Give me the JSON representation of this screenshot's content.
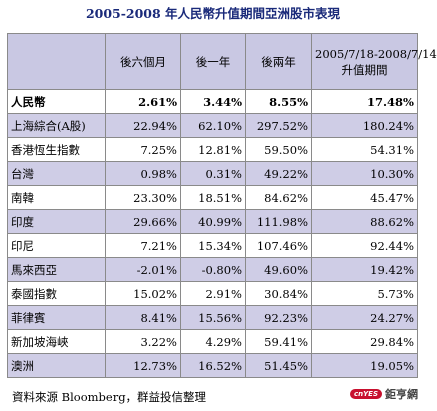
{
  "title": "2005-2008 年人民幣升值期間亞洲股市表現",
  "headers": [
    "",
    "後六個月",
    "後一年",
    "後兩年",
    "2005/7/18-2008/7/14",
    "升值期間"
  ],
  "rows": [
    {
      "name": "人民幣",
      "v": [
        "2.61%",
        "3.44%",
        "8.55%",
        "17.48%"
      ]
    },
    {
      "name": "上海綜合(A股)",
      "v": [
        "22.94%",
        "62.10%",
        "297.52%",
        "180.24%"
      ]
    },
    {
      "name": "香港恆生指數",
      "v": [
        "7.25%",
        "12.81%",
        "59.50%",
        "54.31%"
      ]
    },
    {
      "name": "台灣",
      "v": [
        "0.98%",
        "0.31%",
        "49.22%",
        "10.30%"
      ]
    },
    {
      "name": "南韓",
      "v": [
        "23.30%",
        "18.51%",
        "84.62%",
        "45.47%"
      ]
    },
    {
      "name": "印度",
      "v": [
        "29.66%",
        "40.99%",
        "111.98%",
        "88.62%"
      ]
    },
    {
      "name": "印尼",
      "v": [
        "7.21%",
        "15.34%",
        "107.46%",
        "92.44%"
      ]
    },
    {
      "name": "馬來西亞",
      "v": [
        "-2.01%",
        "-0.80%",
        "49.60%",
        "19.42%"
      ]
    },
    {
      "name": "泰國指數",
      "v": [
        "15.02%",
        "2.91%",
        "30.84%",
        "5.73%"
      ]
    },
    {
      "name": "菲律賓",
      "v": [
        "8.41%",
        "15.56%",
        "92.23%",
        "24.27%"
      ]
    },
    {
      "name": "新加坡海峽",
      "v": [
        "3.22%",
        "4.29%",
        "59.41%",
        "29.84%"
      ]
    },
    {
      "name": "澳洲",
      "v": [
        "12.73%",
        "16.52%",
        "51.45%",
        "19.05%"
      ]
    }
  ],
  "source": "資料來源 Bloomberg，群益投信整理",
  "logo": {
    "badge": "cnYES",
    "text": "鉅亨網"
  }
}
